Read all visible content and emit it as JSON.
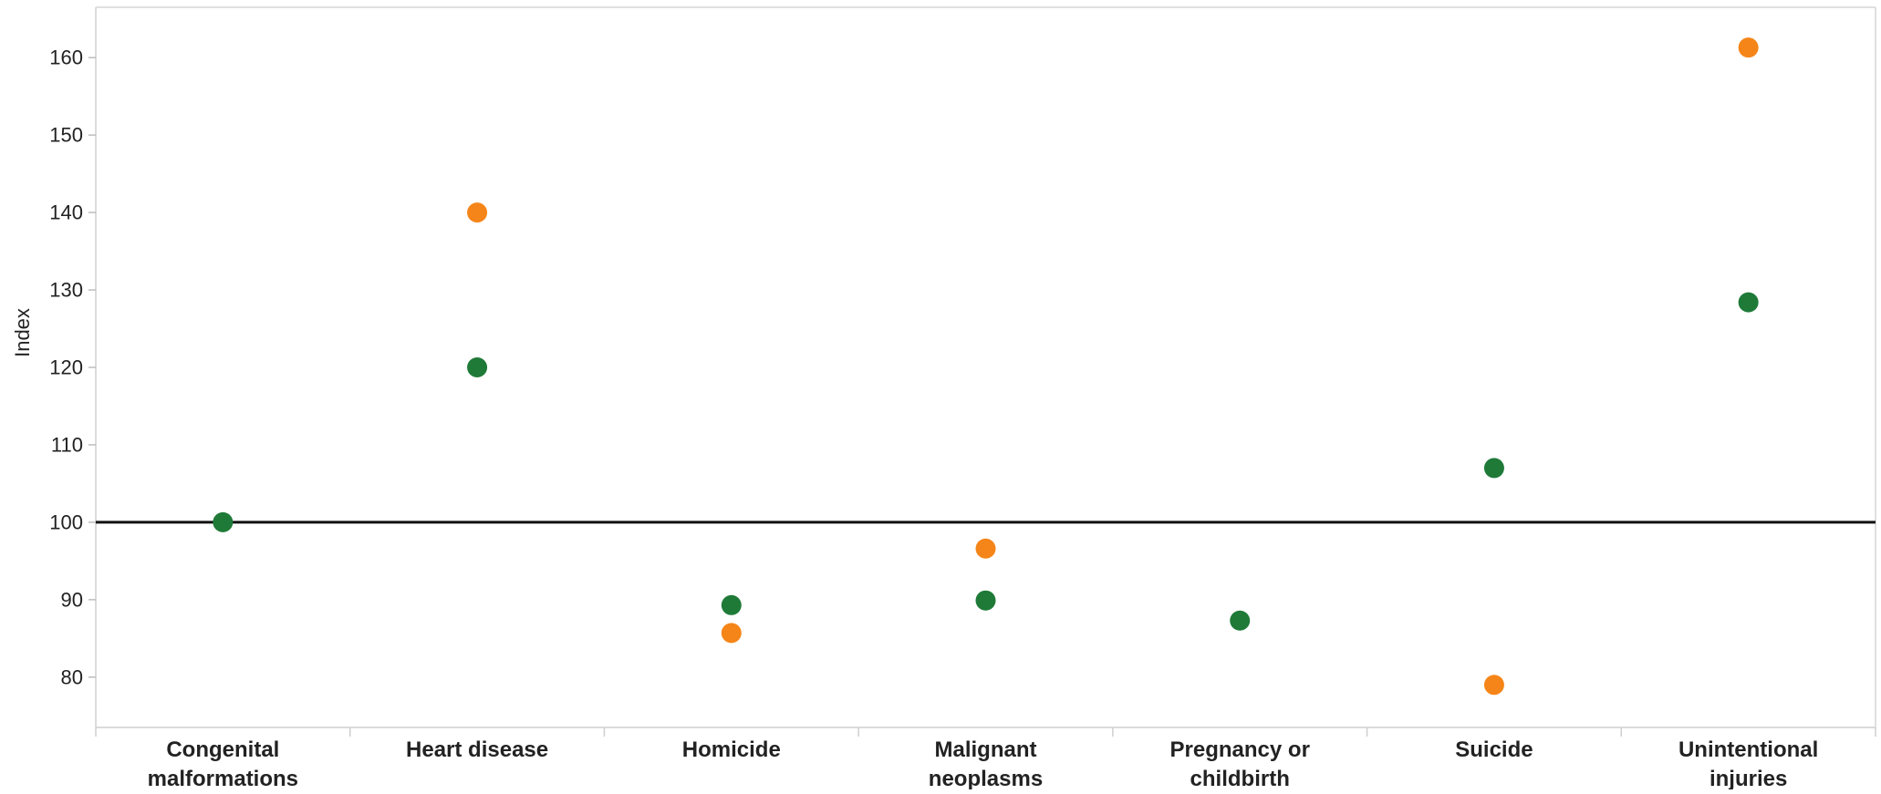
{
  "chart_data": {
    "type": "scatter",
    "title": "",
    "xlabel": "",
    "ylabel": "Index",
    "ylim": [
      73.5,
      166.5
    ],
    "yticks": [
      80,
      90,
      100,
      110,
      120,
      130,
      140,
      150,
      160
    ],
    "reference_line": 100,
    "grid": false,
    "categories": [
      [
        "Congenital",
        "malformations"
      ],
      [
        "Heart disease"
      ],
      [
        "Homicide"
      ],
      [
        "Malignant",
        "neoplasms"
      ],
      [
        "Pregnancy or",
        "childbirth"
      ],
      [
        "Suicide"
      ],
      [
        "Unintentional",
        "injuries"
      ]
    ],
    "series": [
      {
        "color": "#1f7a38",
        "values": [
          100,
          120,
          89.3,
          89.9,
          87.3,
          107,
          128.4
        ]
      },
      {
        "color": "#f58518",
        "values": [
          null,
          140,
          85.7,
          96.6,
          null,
          79,
          161.3
        ]
      }
    ]
  }
}
